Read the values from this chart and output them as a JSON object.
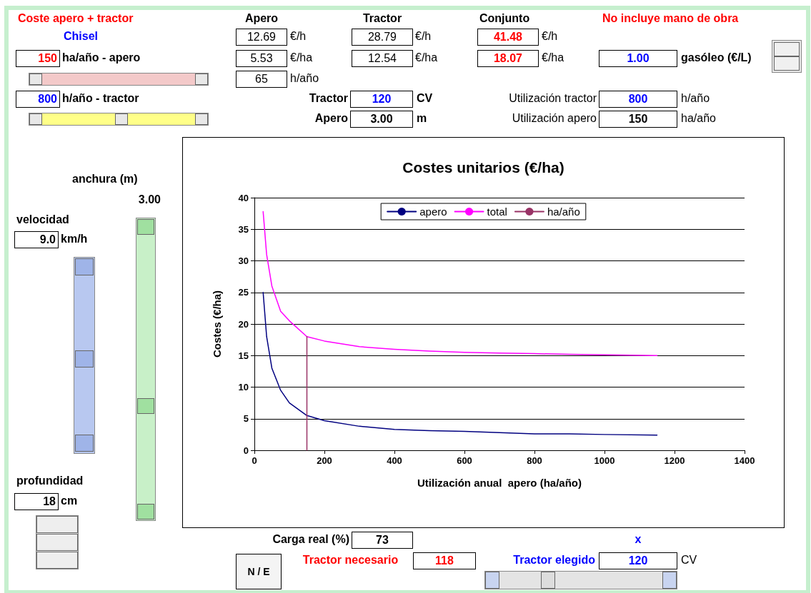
{
  "chart_data": [
    {
      "type": "other",
      "annotations": [
        "Coste apero + tractor",
        "Apero",
        "Tractor",
        "Conjunto",
        "No incluye mano de obra",
        "Chisel",
        "12.69",
        "€/h",
        "28.79",
        "€/h",
        "41.48",
        "€/h",
        "150",
        "ha/año - apero",
        "5.53",
        "€/ha",
        "12.54",
        "€/ha",
        "18.07",
        "€/ha",
        "1.00",
        "gasóleo (€/L)",
        "65",
        "h/año",
        "800",
        "h/año - tractor",
        "Tractor",
        "120",
        "CV",
        "Utilización tractor",
        "800",
        "h/año",
        "Apero",
        "3.00",
        "m",
        "Utilización apero",
        "150",
        "ha/año",
        "anchura (m)",
        "3.00",
        "velocidad",
        "9.0",
        "km/h",
        "profundidad",
        "18",
        "cm",
        "Carga real (%)",
        "73",
        "x",
        "N / E",
        "Tractor necesario",
        "118",
        "Tractor elegido",
        "120",
        "CV"
      ]
    },
    {
      "type": "line",
      "title": "Costes unitarios (€/ha)",
      "xlabel": "Utilización anual  apero (ha/año)",
      "ylabel": "Costes (€/ha)",
      "xlim": [
        0,
        1400
      ],
      "xticks": [
        0,
        200,
        400,
        600,
        800,
        1000,
        1200,
        1400
      ],
      "ylim": [
        0,
        40
      ],
      "yticks": [
        0,
        5,
        10,
        15,
        20,
        25,
        30,
        35,
        40
      ],
      "grid": "y",
      "legend": "top",
      "marker": "none",
      "line_style": "solid",
      "series": [
        {
          "name": "apero",
          "color": "#000080",
          "x": [
            25,
            35,
            50,
            75,
            100,
            150,
            200,
            300,
            400,
            500,
            600,
            700,
            800,
            900,
            1000,
            1150
          ],
          "values": [
            25,
            18,
            13,
            9.5,
            7.5,
            5.5,
            4.7,
            3.8,
            3.3,
            3.1,
            3.0,
            2.8,
            2.6,
            2.6,
            2.5,
            2.4
          ]
        },
        {
          "name": "total",
          "color": "#ff00ff",
          "x": [
            25,
            35,
            50,
            75,
            100,
            150,
            200,
            300,
            400,
            500,
            600,
            700,
            800,
            900,
            1000,
            1150
          ],
          "values": [
            37.8,
            31,
            26,
            22,
            20.5,
            18,
            17.3,
            16.4,
            16,
            15.7,
            15.5,
            15.4,
            15.3,
            15.2,
            15.1,
            15.0
          ]
        },
        {
          "name": "ha/año",
          "color": "#993366",
          "x": [
            150,
            150
          ],
          "values": [
            0,
            18
          ]
        }
      ]
    }
  ]
}
